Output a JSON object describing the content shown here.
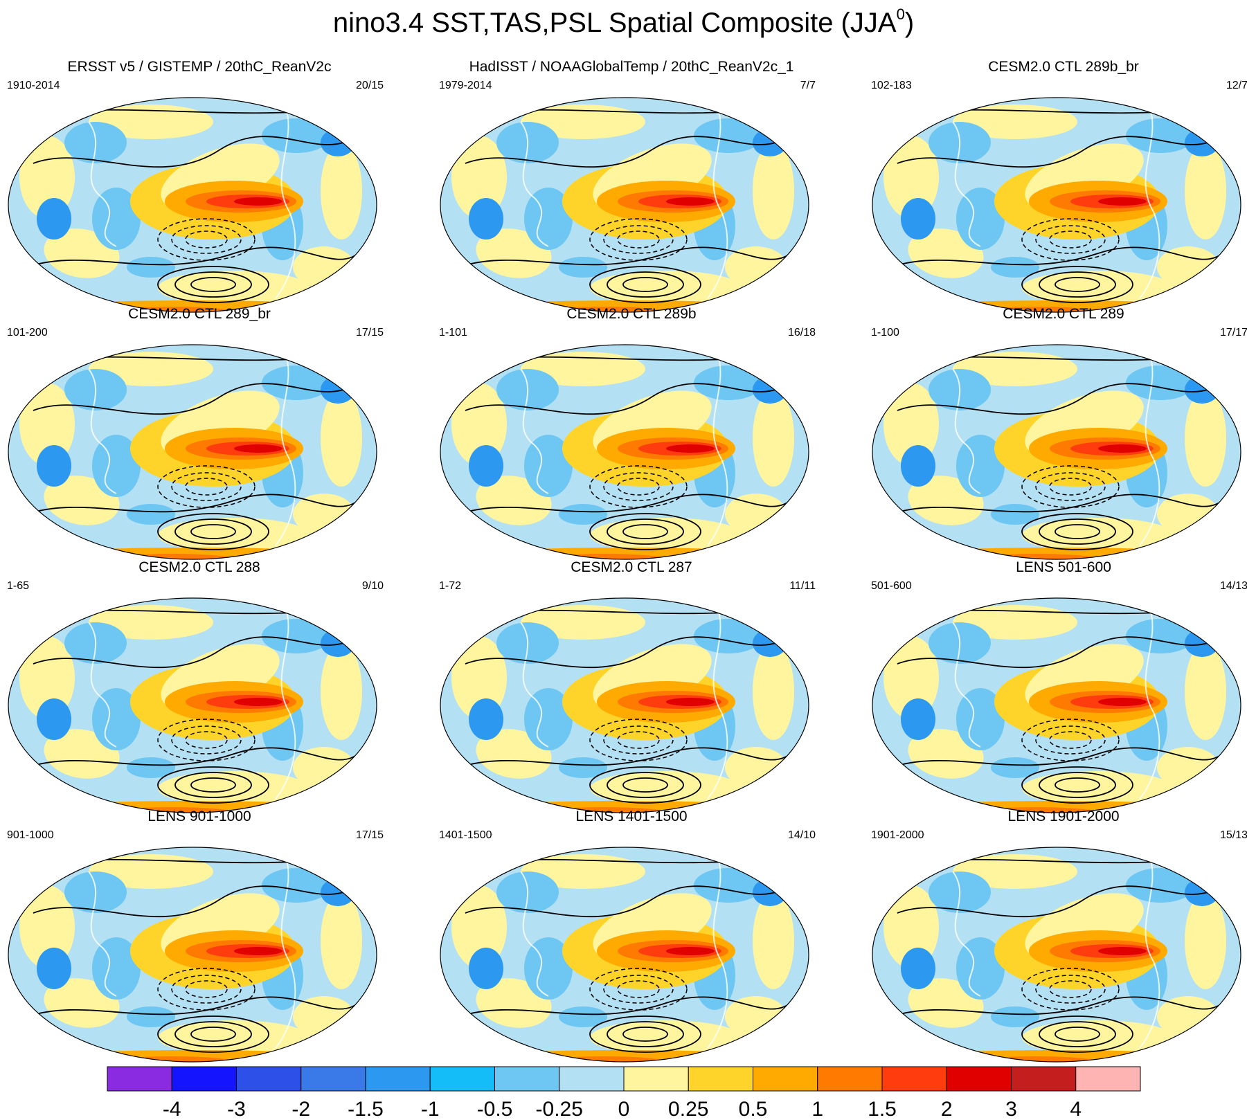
{
  "title": {
    "main": "nino3.4 SST,TAS,PSL Spatial Composite (JJA",
    "superscript": "0",
    "close": ")"
  },
  "panels": [
    {
      "title": "ERSST v5 / GISTEMP / 20thC_ReanV2c",
      "years": "1910-2014",
      "count": "20/15"
    },
    {
      "title": "HadISST / NOAAGlobalTemp / 20thC_ReanV2c_1",
      "years": "1979-2014",
      "count": "7/7"
    },
    {
      "title": "CESM2.0 CTL 289b_br",
      "years": "102-183",
      "count": "12/7"
    },
    {
      "title": "CESM2.0 CTL 289_br",
      "years": "101-200",
      "count": "17/15"
    },
    {
      "title": "CESM2.0 CTL 289b",
      "years": "1-101",
      "count": "16/18"
    },
    {
      "title": "CESM2.0 CTL 289",
      "years": "1-100",
      "count": "17/17"
    },
    {
      "title": "CESM2.0 CTL 288",
      "years": "1-65",
      "count": "9/10"
    },
    {
      "title": "CESM2.0 CTL 287",
      "years": "1-72",
      "count": "11/11"
    },
    {
      "title": "LENS 501-600",
      "years": "501-600",
      "count": "14/13"
    },
    {
      "title": "LENS 901-1000",
      "years": "901-1000",
      "count": "17/15"
    },
    {
      "title": "LENS 1401-1500",
      "years": "1401-1500",
      "count": "14/10"
    },
    {
      "title": "LENS 1901-2000",
      "years": "1901-2000",
      "count": "15/13"
    }
  ],
  "colorbar": {
    "labels": [
      "-4",
      "-3",
      "-2",
      "-1.5",
      "-1",
      "-0.5",
      "-0.25",
      "0",
      "0.25",
      "0.5",
      "1",
      "1.5",
      "2",
      "3",
      "4"
    ],
    "colors": [
      "#8a2be2",
      "#1414ff",
      "#2c50e8",
      "#3a7ae8",
      "#2c98f0",
      "#14bdf8",
      "#6ec6f2",
      "#b4e0f4",
      "#fff59e",
      "#ffd42a",
      "#ffaa00",
      "#ff7a00",
      "#ff3c0e",
      "#e00000",
      "#c41e1e",
      "#ffb4b4"
    ]
  }
}
